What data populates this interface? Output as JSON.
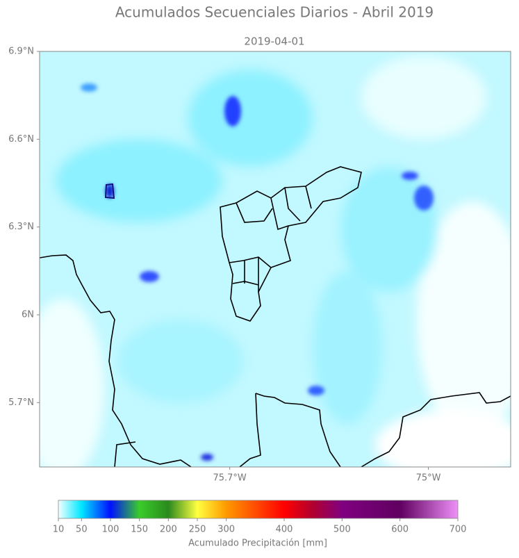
{
  "title": "Acumulados Secuenciales Diarios - Abril 2019",
  "subtitle": "2019-04-01",
  "map": {
    "xlim": [
      -76.37,
      -74.71
    ],
    "ylim": [
      5.48,
      6.9
    ],
    "xticks": [
      {
        "value": -75.7,
        "label": "75.7°W"
      },
      {
        "value": -75.0,
        "label": "75°W"
      }
    ],
    "yticks": [
      {
        "value": 6.9,
        "label": "6.9°N"
      },
      {
        "value": 6.6,
        "label": "6.6°N"
      },
      {
        "value": 6.3,
        "label": "6.3°N"
      },
      {
        "value": 6.0,
        "label": "6N"
      },
      {
        "value": 5.7,
        "label": "5.7°N"
      }
    ]
  },
  "colorbar": {
    "label": "Acumulado Precipitación [mm]",
    "clim": [
      10,
      700
    ],
    "ticks": [
      10,
      50,
      100,
      150,
      200,
      250,
      300,
      400,
      500,
      600,
      700
    ],
    "stops": [
      {
        "value": 10,
        "color": "#f4ffff"
      },
      {
        "value": 50,
        "color": "#00e8ff"
      },
      {
        "value": 100,
        "color": "#0010ff"
      },
      {
        "value": 150,
        "color": "#3acc2a"
      },
      {
        "value": 200,
        "color": "#2a8a1e"
      },
      {
        "value": 250,
        "color": "#ffff40"
      },
      {
        "value": 300,
        "color": "#ff9a00"
      },
      {
        "value": 400,
        "color": "#ff0000"
      },
      {
        "value": 450,
        "color": "#b00030"
      },
      {
        "value": 500,
        "color": "#800080"
      },
      {
        "value": 600,
        "color": "#600060"
      },
      {
        "value": 700,
        "color": "#ee90f8"
      }
    ]
  }
}
